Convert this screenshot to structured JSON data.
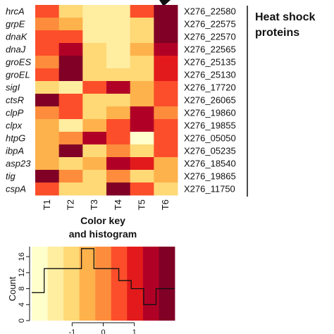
{
  "chart_data": [
    {
      "type": "heatmap",
      "rows": [
        "hrcA",
        "grpE",
        "dnaK",
        "dnaJ",
        "groES",
        "groEL",
        "sigI",
        "ctsR",
        "clpP",
        "clpx",
        "htpG",
        "ibpA",
        "asp23",
        "tig",
        "cspA"
      ],
      "row_ids": [
        "X276_22580",
        "X276_22575",
        "X276_22570",
        "X276_22565",
        "X276_25135",
        "X276_25130",
        "X276_17720",
        "X276_26065",
        "X276_19860",
        "X276_19855",
        "X276_05050",
        "X276_05235",
        "X276_18540",
        "X276_19865",
        "X276_11750"
      ],
      "columns": [
        "T1",
        "T2",
        "T3",
        "T4",
        "T5",
        "T6"
      ],
      "group_label_lines": [
        "Heat shock",
        "proteins"
      ],
      "values": [
        [
          0.5,
          -0.8,
          -1.3,
          -1.5,
          0.3,
          2.2
        ],
        [
          -0.2,
          -0.3,
          -1.3,
          -1.6,
          -0.8,
          2.2
        ],
        [
          0.4,
          0.3,
          -1.3,
          -1.7,
          -0.8,
          1.9
        ],
        [
          0.3,
          1.3,
          -1.0,
          -1.7,
          -0.3,
          1.6
        ],
        [
          0.1,
          2.2,
          -1.0,
          -1.3,
          -0.8,
          1.1
        ],
        [
          0.4,
          2.2,
          -1.1,
          -0.8,
          -1.2,
          1.1
        ],
        [
          -0.9,
          -1.7,
          0.3,
          1.4,
          -0.4,
          0.7
        ],
        [
          2.0,
          0.6,
          -0.8,
          -1.0,
          -0.5,
          0.7
        ],
        [
          -0.2,
          0.6,
          -0.9,
          -0.3,
          1.4,
          -0.2
        ],
        [
          -0.3,
          -1.6,
          -0.4,
          0.5,
          1.5,
          0.4
        ],
        [
          -0.3,
          -0.1,
          1.5,
          0.7,
          -1.8,
          0.7
        ],
        [
          -0.4,
          2.2,
          -0.9,
          -0.1,
          -0.8,
          0.4
        ],
        [
          -0.5,
          -0.9,
          -0.4,
          1.3,
          0.9,
          -0.6
        ],
        [
          2.2,
          0.2,
          -0.8,
          0.1,
          -1.2,
          -0.5
        ],
        [
          0.3,
          -0.9,
          -1.0,
          2.2,
          0.3,
          -0.9
        ]
      ]
    },
    {
      "type": "bar",
      "title_lines": [
        "Color key",
        "and histogram"
      ],
      "ylabel": "Count",
      "xlabel": "",
      "x_ticks": [
        -1,
        0,
        1
      ],
      "y_ticks": [
        0,
        4,
        8,
        12,
        16
      ],
      "xlim": [
        -2.3,
        2.3
      ],
      "ylim": [
        0,
        18.5
      ],
      "color_scale": [
        "#FFFFCC",
        "#FFEDA0",
        "#FED976",
        "#FEB24C",
        "#FD8D3C",
        "#FC4E2A",
        "#E31A1C",
        "#B10026",
        "#800026"
      ],
      "bin_edges": [
        -2.3,
        -1.9,
        -1.5,
        -1.1,
        -0.7,
        -0.3,
        0.1,
        0.5,
        0.9,
        1.3,
        1.7,
        2.1,
        2.3
      ],
      "counts": [
        7,
        13,
        13,
        13,
        18,
        13,
        13,
        10,
        8,
        4,
        8,
        8
      ]
    }
  ]
}
